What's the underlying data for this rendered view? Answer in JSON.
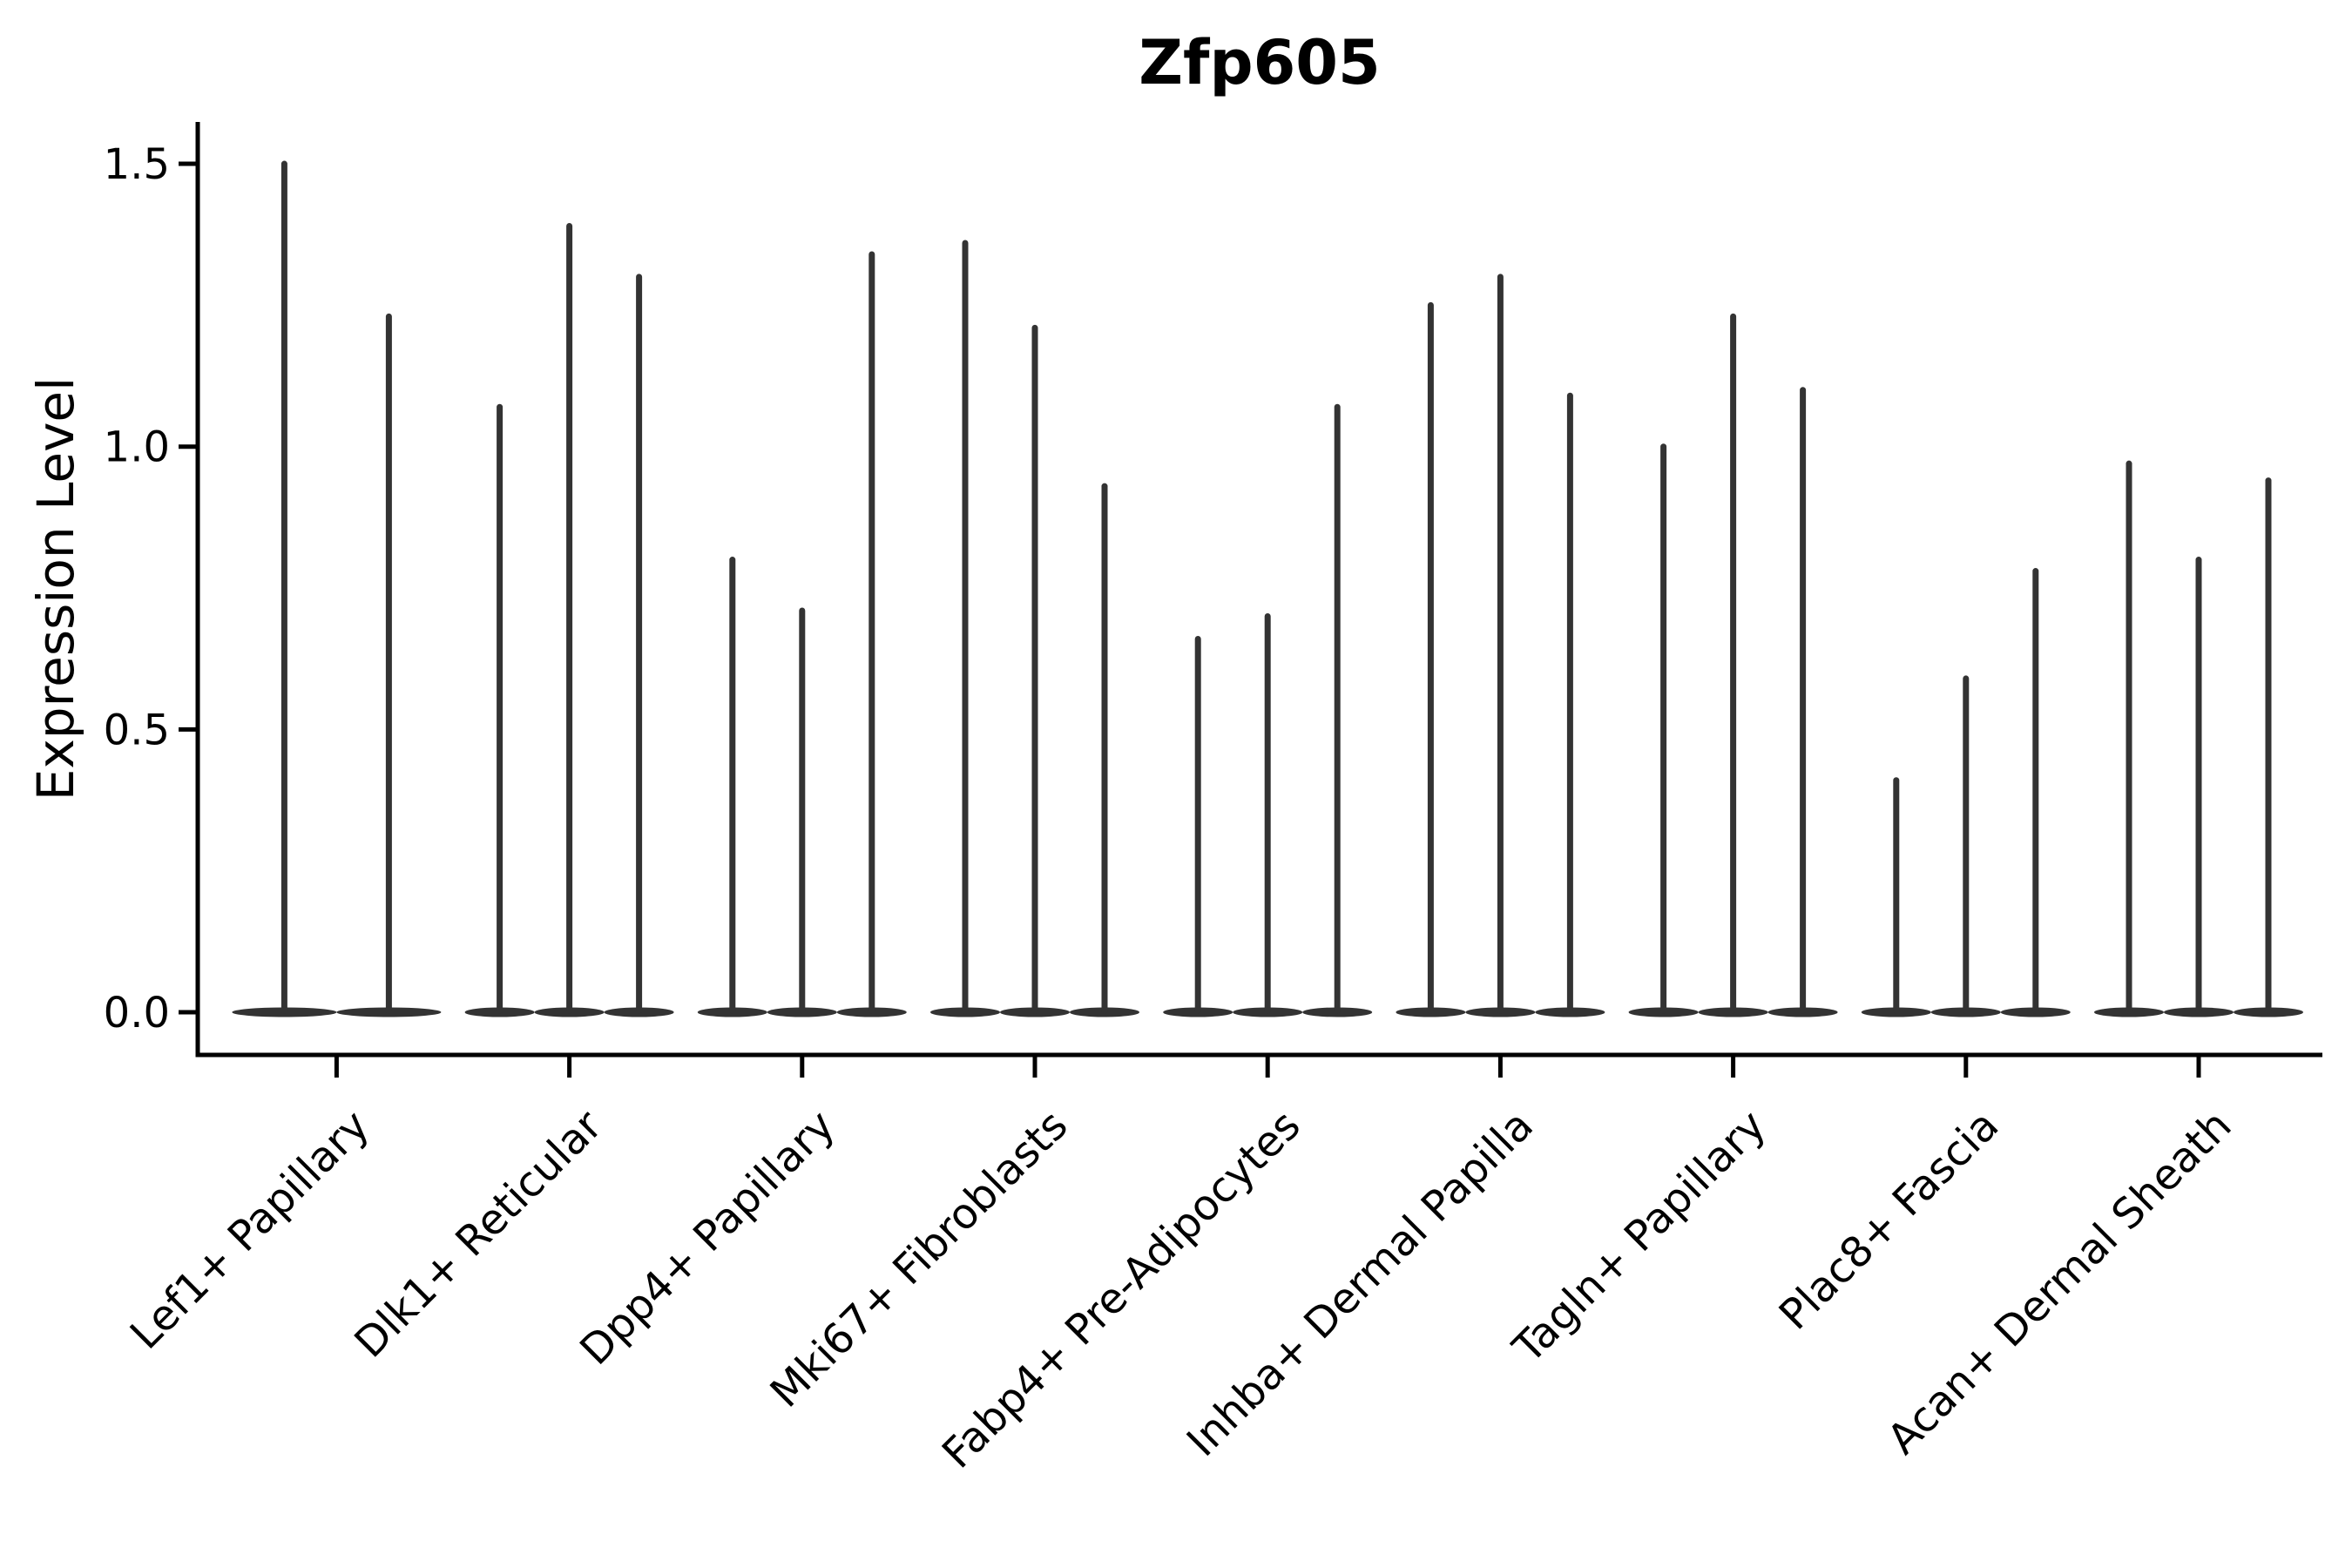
{
  "header": {
    "title": "Zfp605"
  },
  "chart_data": {
    "type": "violin",
    "title": "Zfp605",
    "ylabel": "Expression Level",
    "xlabel": "",
    "ylim": [
      0,
      1.57
    ],
    "yticks": [
      0.0,
      0.5,
      1.0,
      1.5
    ],
    "ytick_labels": [
      "0.0",
      "0.5",
      "1.0",
      "1.5"
    ],
    "grid": false,
    "legend": null,
    "x_tick_rotation": 45,
    "violin_shape_note": "each violin has nearly all density at 0 (flat lens at baseline) with a thin vertical tail up to its max value",
    "categories": [
      "Lef1+ Papillary",
      "Dlk1+ Reticular",
      "Dpp4+ Papillary",
      "Mki67+ Fibroblasts",
      "Fabp4+ Pre-Adipocytes",
      "Inhba+ Dermal Papilla",
      "Tagln+ Papillary",
      "Plac8+ Fascia",
      "Acan+ Dermal Sheath"
    ],
    "groups": [
      {
        "category": "Lef1+ Papillary",
        "violin_max": [
          1.5,
          1.23
        ]
      },
      {
        "category": "Dlk1+ Reticular",
        "violin_max": [
          1.07,
          1.39,
          1.3
        ]
      },
      {
        "category": "Dpp4+ Papillary",
        "violin_max": [
          0.8,
          0.71,
          1.34
        ]
      },
      {
        "category": "Mki67+ Fibroblasts",
        "violin_max": [
          1.36,
          1.21,
          0.93
        ]
      },
      {
        "category": "Fabp4+ Pre-Adipocytes",
        "violin_max": [
          0.66,
          0.7,
          1.07
        ]
      },
      {
        "category": "Inhba+ Dermal Papilla",
        "violin_max": [
          1.25,
          1.3,
          1.09
        ]
      },
      {
        "category": "Tagln+ Papillary",
        "violin_max": [
          1.0,
          1.23,
          1.1
        ]
      },
      {
        "category": "Plac8+ Fascia",
        "violin_max": [
          0.41,
          0.59,
          0.78
        ]
      },
      {
        "category": "Acan+ Dermal Sheath",
        "violin_max": [
          0.97,
          0.8,
          0.94
        ]
      }
    ],
    "colors": {
      "violin": "#333333",
      "axis": "#000000",
      "text": "#000000",
      "background": "#ffffff"
    }
  }
}
